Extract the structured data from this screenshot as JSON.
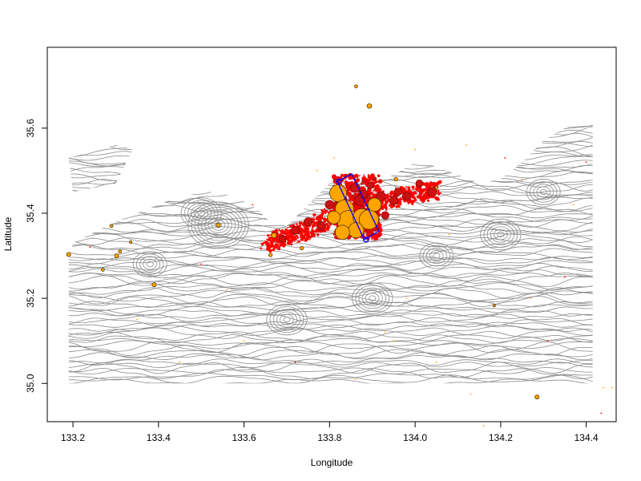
{
  "chart_data": {
    "type": "scatter",
    "title": "",
    "xlabel": "Longitude",
    "ylabel": "Latitude",
    "xlim": [
      133.14,
      134.47
    ],
    "ylim": [
      34.91,
      35.79
    ],
    "x_ticks": [
      133.2,
      133.4,
      133.6,
      133.8,
      134.0,
      134.2,
      134.4
    ],
    "x_tick_labels": [
      "133.2",
      "133.4",
      "133.6",
      "133.8",
      "134.0",
      "134.2",
      "134.4"
    ],
    "y_ticks": [
      35.0,
      35.2,
      35.4,
      35.6
    ],
    "y_tick_labels": [
      "35.0",
      "35.2",
      "35.4",
      "35.6"
    ],
    "grid": false,
    "colors": {
      "contour": "#8c8c8c",
      "event_small": "#ff0000",
      "event_medium": "#cc1111",
      "event_large": "#ffa500",
      "event_outline": "#5a3a00",
      "fault_box": "#0000ff"
    },
    "terrain_extent": {
      "lon": [
        133.19,
        134.42
      ],
      "lat": [
        35.0,
        35.62
      ]
    },
    "fault_box": {
      "corners": [
        [
          133.818,
          35.475
        ],
        [
          133.881,
          35.338
        ],
        [
          133.915,
          35.358
        ],
        [
          133.852,
          35.492
        ]
      ],
      "markers": [
        [
          133.822,
          35.475
        ],
        [
          133.885,
          35.338
        ]
      ]
    },
    "events_large": [
      {
        "lon": 133.82,
        "lat": 35.447,
        "mag": 4.5
      },
      {
        "lon": 133.835,
        "lat": 35.41,
        "mag": 4.8
      },
      {
        "lon": 133.845,
        "lat": 35.38,
        "mag": 5.6
      },
      {
        "lon": 133.875,
        "lat": 35.39,
        "mag": 4.6
      },
      {
        "lon": 133.892,
        "lat": 35.385,
        "mag": 5.0
      },
      {
        "lon": 133.862,
        "lat": 35.36,
        "mag": 4.2
      },
      {
        "lon": 133.83,
        "lat": 35.355,
        "mag": 4.0
      },
      {
        "lon": 133.905,
        "lat": 35.42,
        "mag": 3.8
      },
      {
        "lon": 133.81,
        "lat": 35.39,
        "mag": 3.7
      }
    ],
    "events_medium": [
      {
        "lon": 133.828,
        "lat": 35.43,
        "mag": 3.4
      },
      {
        "lon": 133.87,
        "lat": 35.43,
        "mag": 3.2
      },
      {
        "lon": 133.9,
        "lat": 35.405,
        "mag": 3.3
      },
      {
        "lon": 133.92,
        "lat": 35.44,
        "mag": 3.0
      },
      {
        "lon": 133.95,
        "lat": 35.43,
        "mag": 2.9
      },
      {
        "lon": 133.98,
        "lat": 35.44,
        "mag": 2.8
      },
      {
        "lon": 134.04,
        "lat": 35.45,
        "mag": 3.0
      },
      {
        "lon": 133.72,
        "lat": 35.36,
        "mag": 2.8
      },
      {
        "lon": 133.75,
        "lat": 35.38,
        "mag": 2.8
      },
      {
        "lon": 133.78,
        "lat": 35.37,
        "mag": 2.9
      },
      {
        "lon": 133.69,
        "lat": 35.34,
        "mag": 2.6
      },
      {
        "lon": 133.8,
        "lat": 35.42,
        "mag": 2.9
      },
      {
        "lon": 133.86,
        "lat": 35.46,
        "mag": 3.0
      },
      {
        "lon": 133.88,
        "lat": 35.445,
        "mag": 2.8
      },
      {
        "lon": 133.93,
        "lat": 35.395,
        "mag": 2.7
      },
      {
        "lon": 133.96,
        "lat": 35.45,
        "mag": 2.7
      },
      {
        "lon": 134.01,
        "lat": 35.47,
        "mag": 2.6
      },
      {
        "lon": 133.895,
        "lat": 35.465,
        "mag": 2.5
      }
    ],
    "events_outlying": [
      {
        "lon": 133.862,
        "lat": 35.698,
        "mag": 1.8
      },
      {
        "lon": 133.893,
        "lat": 35.652,
        "mag": 2.1
      },
      {
        "lon": 133.19,
        "lat": 35.303,
        "mag": 2.0
      },
      {
        "lon": 133.27,
        "lat": 35.267,
        "mag": 1.8
      },
      {
        "lon": 133.39,
        "lat": 35.232,
        "mag": 2.0
      },
      {
        "lon": 133.31,
        "lat": 35.31,
        "mag": 1.8
      },
      {
        "lon": 133.29,
        "lat": 35.37,
        "mag": 1.8
      },
      {
        "lon": 133.54,
        "lat": 35.372,
        "mag": 2.0
      },
      {
        "lon": 133.662,
        "lat": 35.302,
        "mag": 1.9
      },
      {
        "lon": 133.735,
        "lat": 35.318,
        "mag": 1.9
      },
      {
        "lon": 134.185,
        "lat": 35.183,
        "mag": 1.7
      },
      {
        "lon": 134.285,
        "lat": 34.968,
        "mag": 2.0
      },
      {
        "lon": 133.67,
        "lat": 35.348,
        "mag": 2.2
      },
      {
        "lon": 133.302,
        "lat": 35.3,
        "mag": 2.0
      },
      {
        "lon": 133.335,
        "lat": 35.332,
        "mag": 1.7
      },
      {
        "lon": 133.955,
        "lat": 35.48,
        "mag": 1.9
      },
      {
        "lon": 134.05,
        "lat": 35.46,
        "mag": 1.8
      }
    ],
    "events_tiny": [
      {
        "lon": 134.44,
        "lat": 34.99
      },
      {
        "lon": 134.46,
        "lat": 34.99
      },
      {
        "lon": 134.435,
        "lat": 34.93
      },
      {
        "lon": 134.16,
        "lat": 34.9
      },
      {
        "lon": 134.13,
        "lat": 34.975
      },
      {
        "lon": 134.21,
        "lat": 35.53
      },
      {
        "lon": 134.25,
        "lat": 35.48
      },
      {
        "lon": 134.31,
        "lat": 35.1
      },
      {
        "lon": 134.35,
        "lat": 35.25
      },
      {
        "lon": 133.95,
        "lat": 35.1
      },
      {
        "lon": 134.05,
        "lat": 35.05
      },
      {
        "lon": 133.6,
        "lat": 35.1
      },
      {
        "lon": 133.45,
        "lat": 35.05
      },
      {
        "lon": 133.24,
        "lat": 35.32
      },
      {
        "lon": 133.62,
        "lat": 35.42
      },
      {
        "lon": 133.5,
        "lat": 35.28
      },
      {
        "lon": 133.98,
        "lat": 35.2
      },
      {
        "lon": 134.12,
        "lat": 35.56
      },
      {
        "lon": 134.0,
        "lat": 35.55
      },
      {
        "lon": 134.4,
        "lat": 35.52
      },
      {
        "lon": 133.81,
        "lat": 35.53
      },
      {
        "lon": 133.77,
        "lat": 35.5
      },
      {
        "lon": 134.27,
        "lat": 35.2
      },
      {
        "lon": 134.08,
        "lat": 35.35
      },
      {
        "lon": 133.56,
        "lat": 35.22
      },
      {
        "lon": 133.35,
        "lat": 35.15
      },
      {
        "lon": 133.93,
        "lat": 35.12
      },
      {
        "lon": 134.37,
        "lat": 35.42
      },
      {
        "lon": 133.72,
        "lat": 35.05
      },
      {
        "lon": 133.86,
        "lat": 35.01
      }
    ],
    "cluster_main": {
      "path": [
        [
          133.655,
          35.33
        ],
        [
          133.7,
          35.345
        ],
        [
          133.75,
          35.36
        ],
        [
          133.8,
          35.39
        ],
        [
          133.85,
          35.41
        ],
        [
          133.9,
          35.42
        ],
        [
          133.95,
          35.435
        ],
        [
          134.0,
          35.445
        ],
        [
          134.05,
          35.455
        ]
      ],
      "box_region": {
        "lon": [
          133.81,
          133.92
        ],
        "lat": [
          35.34,
          35.49
        ]
      }
    }
  }
}
